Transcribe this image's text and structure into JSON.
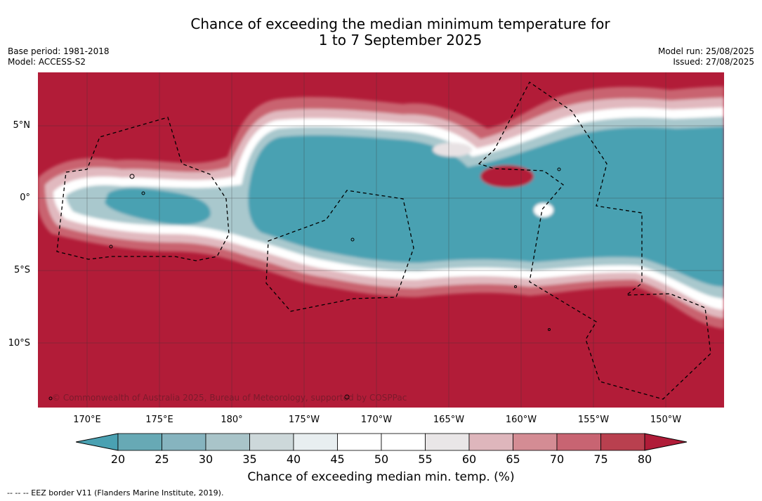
{
  "title_line1": "Chance of exceeding the median minimum temperature for",
  "title_line2": "1 to 7 September 2025",
  "base_period": "Base period: 1981-2018",
  "model": "Model: ACCESS-S2",
  "model_run": "Model run: 25/08/2025",
  "issued": "Issued: 27/08/2025",
  "lat_labels": [
    "5°N",
    "0°",
    "5°S",
    "10°S"
  ],
  "lon_labels": [
    "170°E",
    "175°E",
    "180°",
    "175°W",
    "170°W",
    "165°W",
    "160°W",
    "155°W",
    "150°W"
  ],
  "copyright": "© Commonwealth of Australia 2025, Bureau of Meteorology, supported by COSPPac",
  "colorbar": {
    "ticks": [
      "20",
      "25",
      "30",
      "35",
      "40",
      "45",
      "50",
      "55",
      "60",
      "65",
      "70",
      "75",
      "80"
    ],
    "colors": [
      "#67a9b5",
      "#86b4bf",
      "#a9c4c9",
      "#cdd8da",
      "#e8eef0",
      "#ffffff",
      "#ffffff",
      "#e9e6e7",
      "#deb6bc",
      "#d48c94",
      "#c86472",
      "#b9404f"
    ],
    "under_color": "#4aa1b2",
    "over_color": "#b01c38",
    "label": "Chance of exceeding median min. temp. (%)"
  },
  "colors": {
    "wet_high": "#b21c38",
    "low": "#48a1b2"
  },
  "footer": "--  --  -- EEZ border V11 (Flanders Marine Institute, 2019)."
}
